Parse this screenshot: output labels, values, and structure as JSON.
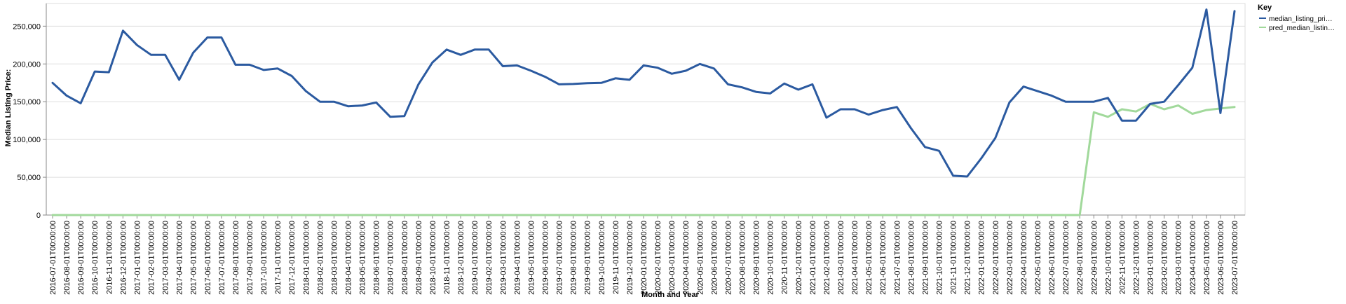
{
  "chart_data": {
    "type": "line",
    "xlabel": "Month and Year",
    "ylabel": "Median Listing Price:",
    "ylim": [
      0,
      280000
    ],
    "yticks": [
      0,
      50000,
      100000,
      150000,
      200000,
      250000
    ],
    "ytick_labels": [
      "0",
      "50,000",
      "100,000",
      "150,000",
      "200,000",
      "250,000"
    ],
    "grid": true,
    "legend": {
      "title": "Key",
      "placement": "top-right"
    },
    "x": [
      "2016-07-01T00:00:00",
      "2016-08-01T00:00:00",
      "2016-09-01T00:00:00",
      "2016-10-01T00:00:00",
      "2016-11-01T00:00:00",
      "2016-12-01T00:00:00",
      "2017-01-01T00:00:00",
      "2017-02-01T00:00:00",
      "2017-03-01T00:00:00",
      "2017-04-01T00:00:00",
      "2017-05-01T00:00:00",
      "2017-06-01T00:00:00",
      "2017-07-01T00:00:00",
      "2017-08-01T00:00:00",
      "2017-09-01T00:00:00",
      "2017-10-01T00:00:00",
      "2017-11-01T00:00:00",
      "2017-12-01T00:00:00",
      "2018-01-01T00:00:00",
      "2018-02-01T00:00:00",
      "2018-03-01T00:00:00",
      "2018-04-01T00:00:00",
      "2018-05-01T00:00:00",
      "2018-06-01T00:00:00",
      "2018-07-01T00:00:00",
      "2018-08-01T00:00:00",
      "2018-09-01T00:00:00",
      "2018-10-01T00:00:00",
      "2018-11-01T00:00:00",
      "2018-12-01T00:00:00",
      "2019-01-01T00:00:00",
      "2019-02-01T00:00:00",
      "2019-03-01T00:00:00",
      "2019-04-01T00:00:00",
      "2019-05-01T00:00:00",
      "2019-06-01T00:00:00",
      "2019-07-01T00:00:00",
      "2019-08-01T00:00:00",
      "2019-09-01T00:00:00",
      "2019-10-01T00:00:00",
      "2019-11-01T00:00:00",
      "2019-12-01T00:00:00",
      "2020-01-01T00:00:00",
      "2020-02-01T00:00:00",
      "2020-03-01T00:00:00",
      "2020-04-01T00:00:00",
      "2020-05-01T00:00:00",
      "2020-06-01T00:00:00",
      "2020-07-01T00:00:00",
      "2020-08-01T00:00:00",
      "2020-09-01T00:00:00",
      "2020-10-01T00:00:00",
      "2020-11-01T00:00:00",
      "2020-12-01T00:00:00",
      "2021-01-01T00:00:00",
      "2021-02-01T00:00:00",
      "2021-03-01T00:00:00",
      "2021-04-01T00:00:00",
      "2021-05-01T00:00:00",
      "2021-06-01T00:00:00",
      "2021-07-01T00:00:00",
      "2021-08-01T00:00:00",
      "2021-09-01T00:00:00",
      "2021-10-01T00:00:00",
      "2021-11-01T00:00:00",
      "2021-12-01T00:00:00",
      "2022-01-01T00:00:00",
      "2022-02-01T00:00:00",
      "2022-03-01T00:00:00",
      "2022-04-01T00:00:00",
      "2022-05-01T00:00:00",
      "2022-06-01T00:00:00",
      "2022-07-01T00:00:00",
      "2022-08-01T00:00:00",
      "2022-09-01T00:00:00",
      "2022-10-01T00:00:00",
      "2022-11-01T00:00:00",
      "2022-12-01T00:00:00",
      "2023-01-01T00:00:00",
      "2023-02-01T00:00:00",
      "2023-03-01T00:00:00",
      "2023-04-01T00:00:00",
      "2023-05-01T00:00:00",
      "2023-06-01T00:00:00",
      "2023-07-01T00:00:00"
    ],
    "series": [
      {
        "name": "median_listing_pri…",
        "color": "#2b5aa0",
        "values": [
          175000,
          158000,
          148000,
          190000,
          189000,
          244000,
          225000,
          212000,
          212000,
          179000,
          215000,
          235000,
          235000,
          199000,
          199000,
          192000,
          194000,
          184000,
          164000,
          150000,
          150000,
          144000,
          145000,
          149000,
          130000,
          131000,
          173000,
          202000,
          219000,
          212000,
          219000,
          219000,
          197000,
          198000,
          191000,
          183000,
          173000,
          173500,
          174500,
          175000,
          181000,
          179000,
          198000,
          195000,
          187000,
          191000,
          200000,
          194000,
          173000,
          169000,
          163000,
          161000,
          174000,
          166000,
          173000,
          129000,
          140000,
          140000,
          133000,
          139000,
          143000,
          115000,
          90000,
          85000,
          52000,
          51000,
          75000,
          102000,
          149000,
          170000,
          164000,
          158000,
          150000,
          150000,
          150000,
          155000,
          125000,
          125000,
          147000,
          150000,
          172000,
          195000,
          272000,
          135000,
          270000
        ]
      },
      {
        "name": "pred_median_listin…",
        "color": "#a1d99b",
        "values": [
          0,
          0,
          0,
          0,
          0,
          0,
          0,
          0,
          0,
          0,
          0,
          0,
          0,
          0,
          0,
          0,
          0,
          0,
          0,
          0,
          0,
          0,
          0,
          0,
          0,
          0,
          0,
          0,
          0,
          0,
          0,
          0,
          0,
          0,
          0,
          0,
          0,
          0,
          0,
          0,
          0,
          0,
          0,
          0,
          0,
          0,
          0,
          0,
          0,
          0,
          0,
          0,
          0,
          0,
          0,
          0,
          0,
          0,
          0,
          0,
          0,
          0,
          0,
          0,
          0,
          0,
          0,
          0,
          0,
          0,
          0,
          0,
          0,
          0,
          136000,
          130000,
          140000,
          137000,
          147000,
          140000,
          145000,
          134000,
          139000,
          141000,
          143000
        ]
      }
    ]
  }
}
